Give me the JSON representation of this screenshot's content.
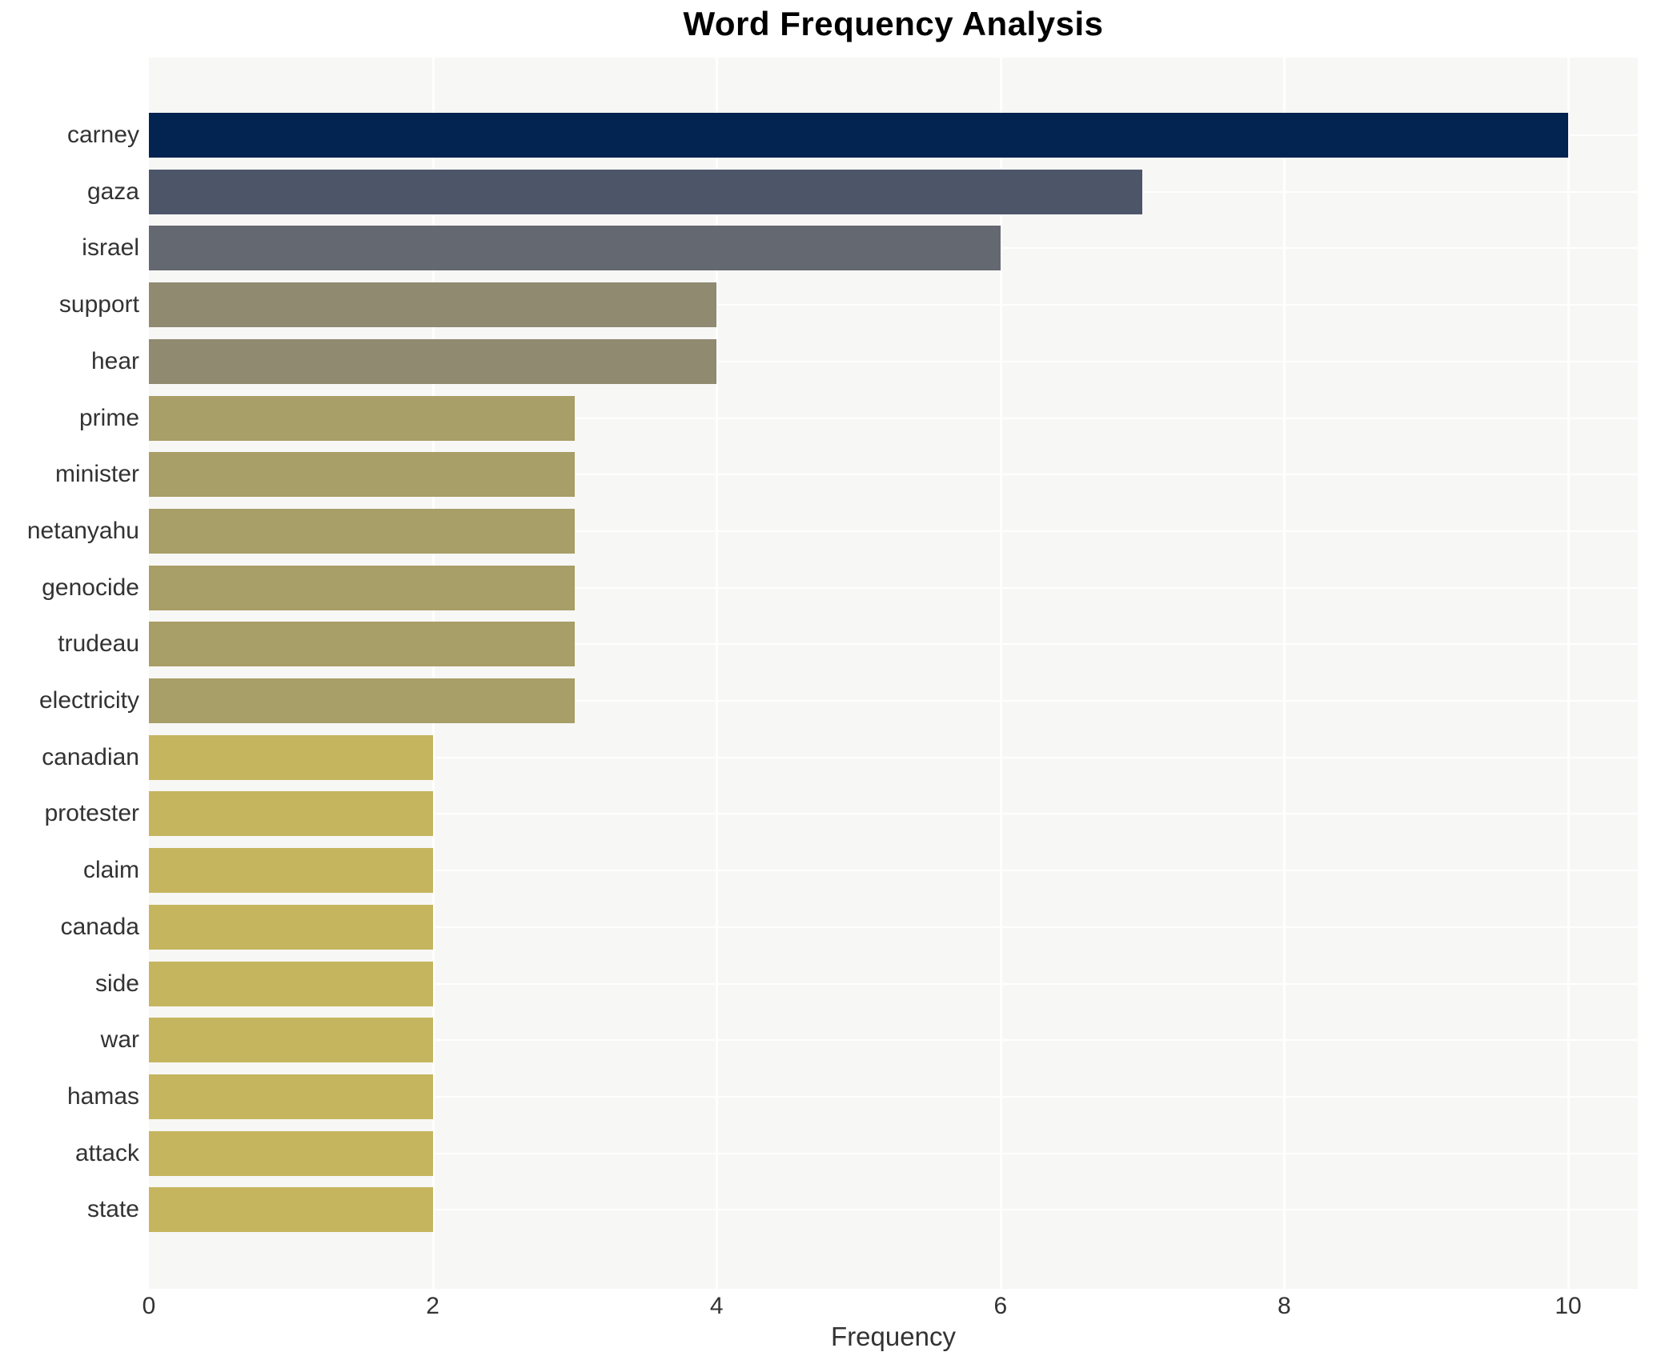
{
  "chart_data": {
    "type": "bar",
    "orientation": "horizontal",
    "title": "Word Frequency Analysis",
    "xlabel": "Frequency",
    "ylabel": "",
    "categories": [
      "carney",
      "gaza",
      "israel",
      "support",
      "hear",
      "prime",
      "minister",
      "netanyahu",
      "genocide",
      "trudeau",
      "electricity",
      "canadian",
      "protester",
      "claim",
      "canada",
      "side",
      "war",
      "hamas",
      "attack",
      "state"
    ],
    "values": [
      10,
      7,
      6,
      4,
      4,
      3,
      3,
      3,
      3,
      3,
      3,
      2,
      2,
      2,
      2,
      2,
      2,
      2,
      2,
      2
    ],
    "bar_colors": [
      "#032350",
      "#4d5569",
      "#646870",
      "#8f8a70",
      "#8f8a70",
      "#a89e67",
      "#a89e67",
      "#a89e67",
      "#a89e67",
      "#a89e67",
      "#a89e67",
      "#c5b55e",
      "#c5b55e",
      "#c5b55e",
      "#c5b55e",
      "#c5b55e",
      "#c5b55e",
      "#c5b55e",
      "#c5b55e",
      "#c5b55e"
    ],
    "xticks": [
      0,
      2,
      4,
      6,
      8,
      10
    ],
    "xlim": [
      0,
      10.5
    ],
    "grid": "on",
    "grid_color": "#ffffff",
    "plot_background": "#f7f7f6",
    "page_background": "#ffffff",
    "title_color": "#000000",
    "tick_label_color": "#333333",
    "legend": "none"
  }
}
